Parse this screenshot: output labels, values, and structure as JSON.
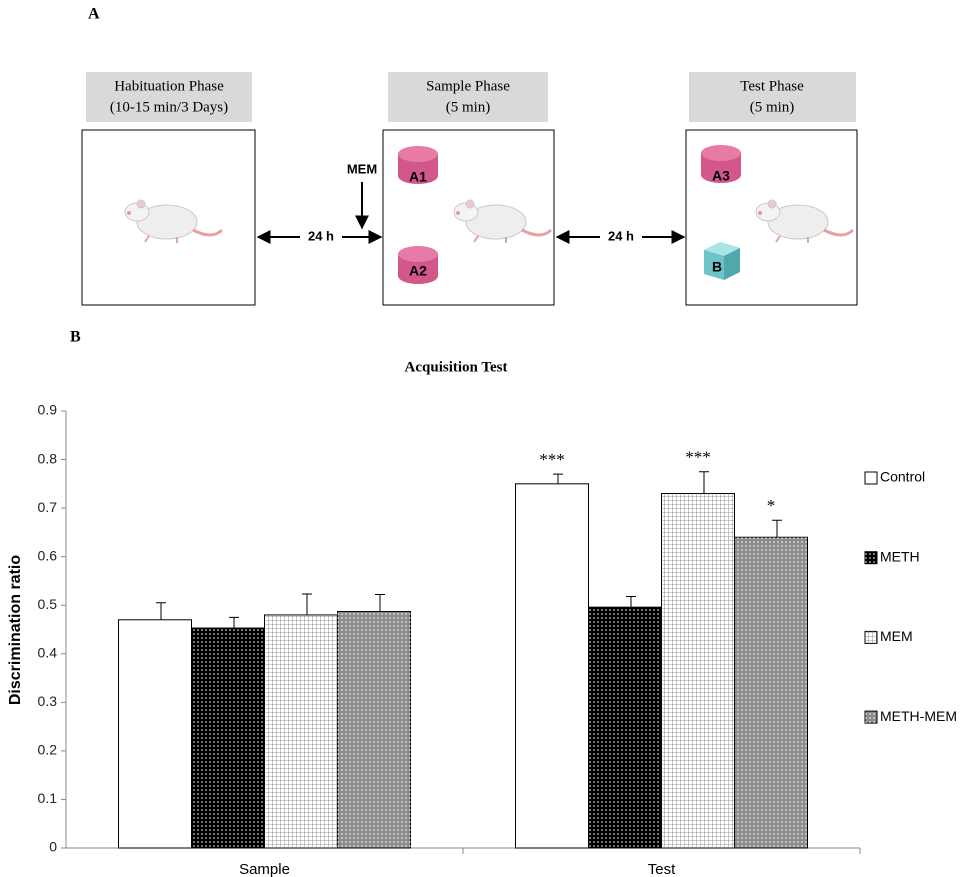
{
  "panel_labels": [
    "A",
    "B"
  ],
  "diagram": {
    "phases": [
      {
        "lines": [
          "Habituation Phase",
          "(10-15 min/3 Days)"
        ]
      },
      {
        "lines": [
          "Sample Phase",
          "(5 min)"
        ],
        "objects": [
          "A1",
          "A2"
        ]
      },
      {
        "lines": [
          "Test Phase",
          "(5 min)"
        ],
        "objects": [
          "A3",
          "B"
        ]
      }
    ],
    "intervals": [
      "24 h",
      "24 h"
    ],
    "treatment": "MEM"
  },
  "chart_data": {
    "type": "bar",
    "title": "Acquisition Test",
    "y_label": "Discrimination ratio",
    "categories": [
      "Sample",
      "Test"
    ],
    "series": [
      {
        "name": "Control",
        "color": "#ffffff",
        "pattern": "none",
        "values": [
          0.47,
          0.75
        ],
        "errors": [
          0.035,
          0.02
        ],
        "annotations": [
          null,
          "***"
        ]
      },
      {
        "name": "METH",
        "color": "#000000",
        "pattern": "dots",
        "values": [
          0.453,
          0.496
        ],
        "errors": [
          0.022,
          0.022
        ],
        "annotations": [
          null,
          null
        ]
      },
      {
        "name": "MEM",
        "color": "#ffffff",
        "pattern": "grid",
        "values": [
          0.48,
          0.73
        ],
        "errors": [
          0.043,
          0.045
        ],
        "annotations": [
          null,
          "***"
        ]
      },
      {
        "name": "METH-MEM",
        "color": "#8c8c8c",
        "pattern": "dots",
        "values": [
          0.487,
          0.64
        ],
        "errors": [
          0.035,
          0.035
        ],
        "annotations": [
          null,
          "*"
        ]
      }
    ],
    "ylim": [
      0,
      0.9
    ],
    "yticks": [
      0,
      0.1,
      0.2,
      0.3,
      0.4,
      0.5,
      0.6,
      0.7,
      0.8,
      0.9
    ],
    "grid": false,
    "legend": "right"
  }
}
